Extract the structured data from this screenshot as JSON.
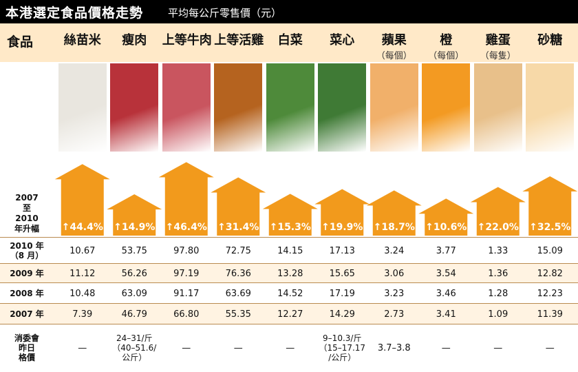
{
  "title": "本港選定食品價格走勢",
  "subtitle": "平均每公斤零售價（元）",
  "header_label": "食品",
  "increase_label": [
    "2007",
    "至",
    "2010",
    "年升幅"
  ],
  "chart_data": {
    "type": "bar",
    "title": "本港選定食品價格走勢",
    "ylabel": "2007至2010年升幅",
    "categories": [
      "絲苗米",
      "瘦肉",
      "上等牛肉",
      "上等活雞",
      "白菜",
      "菜心",
      "蘋果",
      "橙",
      "雞蛋",
      "砂糖"
    ],
    "category_subs": [
      "",
      "",
      "",
      "",
      "",
      "",
      "（每個）",
      "（每個）",
      "（每隻）",
      ""
    ],
    "values": [
      44.4,
      14.9,
      46.4,
      31.4,
      15.3,
      19.9,
      18.7,
      10.6,
      22.0,
      32.5
    ],
    "value_labels": [
      "↑44.4%",
      "↑14.9%",
      "↑46.4%",
      "↑31.4%",
      "↑15.3%",
      "↑19.9%",
      "↑18.7%",
      "↑10.6%",
      "↑22.0%",
      "↑32.5%"
    ],
    "ylim": [
      0,
      50
    ],
    "color": "#f29a1c",
    "table": {
      "rows": [
        {
          "label": [
            "2010 年",
            "（8 月）"
          ],
          "values": [
            "10.67",
            "53.75",
            "97.80",
            "72.75",
            "14.15",
            "17.13",
            "3.24",
            "3.77",
            "1.33",
            "15.09"
          ]
        },
        {
          "label": [
            "2009 年"
          ],
          "values": [
            "11.12",
            "56.26",
            "97.19",
            "76.36",
            "13.28",
            "15.65",
            "3.06",
            "3.54",
            "1.36",
            "12.82"
          ]
        },
        {
          "label": [
            "2008 年"
          ],
          "values": [
            "10.48",
            "63.09",
            "91.17",
            "63.69",
            "14.52",
            "17.19",
            "3.23",
            "3.46",
            "1.28",
            "12.23"
          ]
        },
        {
          "label": [
            "2007 年"
          ],
          "values": [
            "7.39",
            "46.79",
            "66.80",
            "55.35",
            "12.27",
            "14.29",
            "2.73",
            "3.41",
            "1.09",
            "11.39"
          ]
        },
        {
          "label": [
            "消委會",
            "昨日",
            "格價"
          ],
          "values": [
            "—",
            "24–31/斤\n（40–51.6/\n公斤）",
            "—",
            "—",
            "—",
            "9–10.3/斤\n（15–17.17\n/公斤）",
            "3.7–3.8",
            "—",
            "—",
            "—"
          ]
        }
      ]
    }
  },
  "photo_colors": [
    "#e9e6df",
    "#b8323a",
    "#c9555f",
    "#b5631f",
    "#4e8a3a",
    "#3f7a35",
    "#f1b06a",
    "#f39a22",
    "#e8c08a",
    "#f7d9a8"
  ]
}
